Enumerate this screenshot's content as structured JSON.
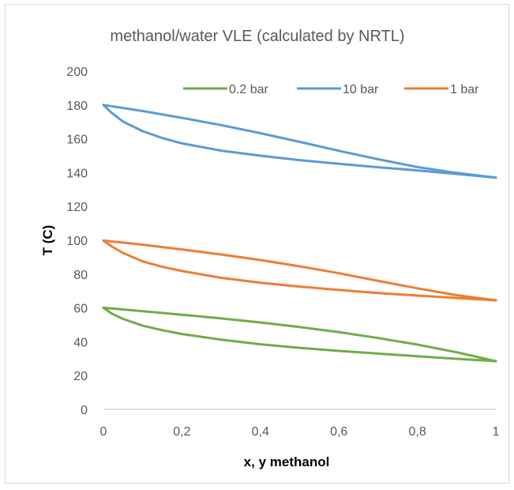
{
  "chart_data": {
    "type": "line",
    "title": "methanol/water VLE (calculated by NRTL)",
    "xlabel": "x, y methanol",
    "ylabel": "T (C)",
    "xlim": [
      0,
      1
    ],
    "ylim": [
      0,
      200
    ],
    "x_ticks": [
      "0",
      "0,2",
      "0,4",
      "0,6",
      "0,8",
      "1"
    ],
    "y_ticks": [
      "0",
      "20",
      "40",
      "60",
      "80",
      "100",
      "120",
      "140",
      "160",
      "180",
      "200"
    ],
    "grid": false,
    "legend_position": "top",
    "series": [
      {
        "name": "0.2 bar",
        "color": "#70ad47",
        "bubble": {
          "x": [
            0,
            0.02,
            0.05,
            0.1,
            0.15,
            0.2,
            0.3,
            0.4,
            0.5,
            0.6,
            0.7,
            0.8,
            0.9,
            1.0
          ],
          "y": [
            60.1,
            56.8,
            53.5,
            49.5,
            46.8,
            44.6,
            41.2,
            38.5,
            36.4,
            34.6,
            33.0,
            31.4,
            29.9,
            28.5
          ]
        },
        "dew": {
          "x": [
            0,
            0.1,
            0.2,
            0.3,
            0.4,
            0.5,
            0.6,
            0.7,
            0.8,
            0.9,
            1.0
          ],
          "y": [
            60.1,
            58.1,
            56.0,
            53.8,
            51.4,
            48.7,
            45.7,
            42.2,
            38.3,
            33.8,
            28.5
          ]
        }
      },
      {
        "name": "10 bar",
        "color": "#5b9bd5",
        "bubble": {
          "x": [
            0,
            0.02,
            0.05,
            0.1,
            0.15,
            0.2,
            0.3,
            0.4,
            0.5,
            0.6,
            0.7,
            0.8,
            0.9,
            1.0
          ],
          "y": [
            180,
            175.5,
            170.2,
            164.5,
            160.4,
            157.3,
            153.0,
            150.0,
            147.4,
            145.2,
            143.2,
            141.3,
            139.2,
            137.0
          ]
        },
        "dew": {
          "x": [
            0,
            0.1,
            0.2,
            0.3,
            0.4,
            0.5,
            0.6,
            0.7,
            0.8,
            0.9,
            1.0
          ],
          "y": [
            180,
            176.4,
            172.4,
            168.1,
            163.3,
            158.2,
            152.9,
            147.9,
            143.3,
            139.8,
            137.0
          ]
        }
      },
      {
        "name": "1 bar",
        "color": "#ed7d31",
        "bubble": {
          "x": [
            0,
            0.02,
            0.05,
            0.1,
            0.15,
            0.2,
            0.3,
            0.4,
            0.5,
            0.6,
            0.7,
            0.8,
            0.9,
            1.0
          ],
          "y": [
            99.8,
            96.5,
            92.5,
            87.5,
            84.3,
            81.8,
            77.8,
            74.9,
            72.6,
            70.6,
            68.8,
            67.3,
            65.9,
            64.5
          ]
        },
        "dew": {
          "x": [
            0,
            0.1,
            0.2,
            0.3,
            0.4,
            0.5,
            0.6,
            0.7,
            0.8,
            0.9,
            1.0
          ],
          "y": [
            99.8,
            97.4,
            94.6,
            91.6,
            88.3,
            84.6,
            80.5,
            76.0,
            71.6,
            67.5,
            64.5
          ]
        }
      }
    ],
    "legend_order": [
      "0.2 bar",
      "10 bar",
      "1 bar"
    ]
  }
}
